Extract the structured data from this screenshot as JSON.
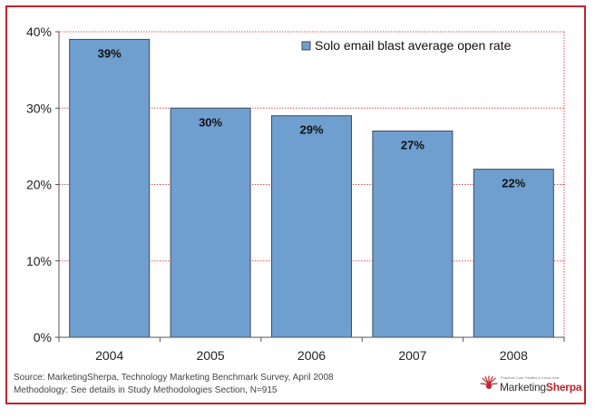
{
  "chart_data": {
    "type": "bar",
    "categories": [
      "2004",
      "2005",
      "2006",
      "2007",
      "2008"
    ],
    "series": [
      {
        "name": "Solo email blast average open rate",
        "values": [
          39,
          30,
          29,
          27,
          22
        ]
      }
    ],
    "data_labels": [
      "39%",
      "30%",
      "29%",
      "27%",
      "22%"
    ],
    "ylim": [
      0,
      40
    ],
    "y_ticks": [
      {
        "value": 0,
        "label": "0%"
      },
      {
        "value": 10,
        "label": "10%"
      },
      {
        "value": 20,
        "label": "20%"
      },
      {
        "value": 30,
        "label": "30%"
      },
      {
        "value": 40,
        "label": "40%"
      }
    ],
    "grid": true,
    "legend_position": "top-right",
    "bar_color": "#6f9fcf",
    "bar_edge_color": "#3f4a5a",
    "grid_color": "#d9534f",
    "frame_color": "#c0222b"
  },
  "footer": {
    "source": "Source: MarketingSherpa, Technology Marketing Benchmark Survey, April 2008",
    "methodology": "Methodology: See details in Study Methodologies Section, N=915"
  },
  "logo": {
    "tagline": "Practical Case Studies & Know-How",
    "name_part1": "Marketing",
    "name_part2": "Sherpa"
  }
}
